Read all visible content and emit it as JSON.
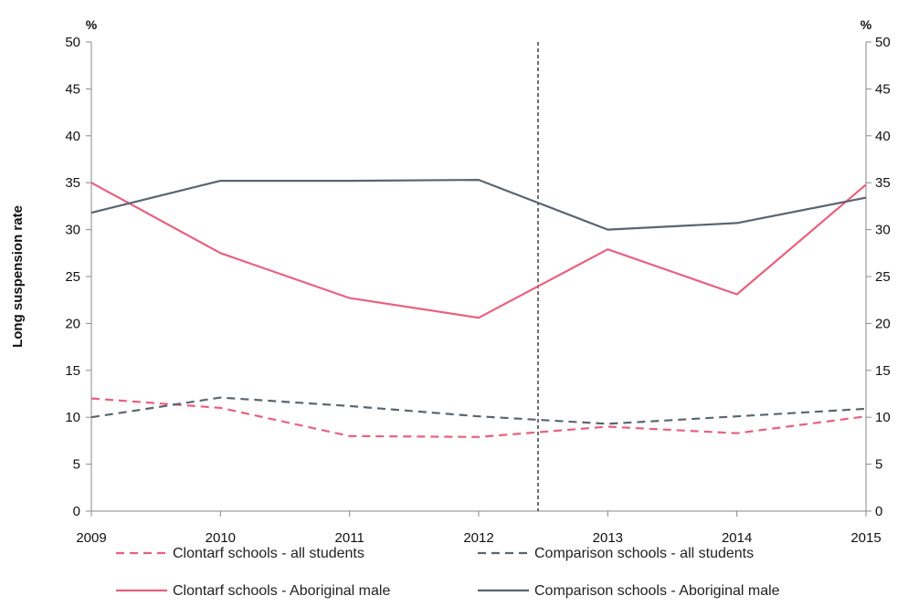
{
  "chart_data": {
    "type": "line",
    "x": [
      "2009",
      "2010",
      "2011",
      "2012",
      "2013",
      "2014",
      "2015"
    ],
    "ylabel": "Long suspension rate",
    "y_unit_left": "%",
    "y_unit_right": "%",
    "ylim": [
      0,
      50
    ],
    "yticks": [
      0,
      5,
      10,
      15,
      20,
      25,
      30,
      35,
      40,
      45,
      50
    ],
    "grid": false,
    "reference_line_x": 2012.46,
    "series": [
      {
        "name": "Clontarf schools - all students",
        "color": "#e8607f",
        "style": "dashed",
        "values": [
          12.0,
          11.0,
          8.0,
          7.9,
          9.0,
          8.3,
          10.1
        ]
      },
      {
        "name": "Comparison schools - all students",
        "color": "#5a6470",
        "style": "dashed",
        "values": [
          10.0,
          12.1,
          11.2,
          10.1,
          9.3,
          10.1,
          10.9
        ]
      },
      {
        "name": "Clontarf schools - Aboriginal male",
        "color": "#e8607f",
        "style": "solid",
        "values": [
          35.0,
          27.5,
          22.7,
          20.6,
          27.9,
          23.1,
          34.8
        ]
      },
      {
        "name": "Comparison schools - Aboriginal male",
        "color": "#5a6470",
        "style": "solid",
        "values": [
          31.8,
          35.2,
          35.2,
          35.3,
          30.0,
          30.7,
          33.4
        ]
      }
    ],
    "legend_position": "bottom"
  }
}
